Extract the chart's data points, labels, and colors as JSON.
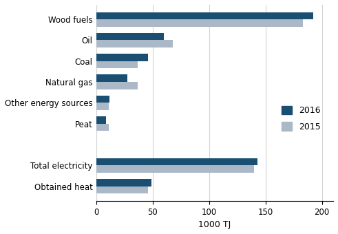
{
  "categories": [
    "Obtained heat",
    "Total electricity",
    "",
    "Peat",
    "Other energy sources",
    "Natural gas",
    "Coal",
    "Oil",
    "Wood fuels"
  ],
  "values_2016": [
    49,
    143,
    null,
    9,
    12,
    28,
    46,
    60,
    192
  ],
  "values_2015": [
    46,
    140,
    null,
    11,
    11,
    37,
    37,
    68,
    183
  ],
  "color_2016": "#1a4f72",
  "color_2015": "#aab8c7",
  "xlabel": "1000 TJ",
  "legend_2016": "2016",
  "legend_2015": "2015",
  "xlim": [
    0,
    210
  ],
  "xticks": [
    0,
    50,
    100,
    150,
    200
  ],
  "bar_height": 0.35,
  "figsize": [
    4.91,
    3.4
  ],
  "dpi": 100
}
